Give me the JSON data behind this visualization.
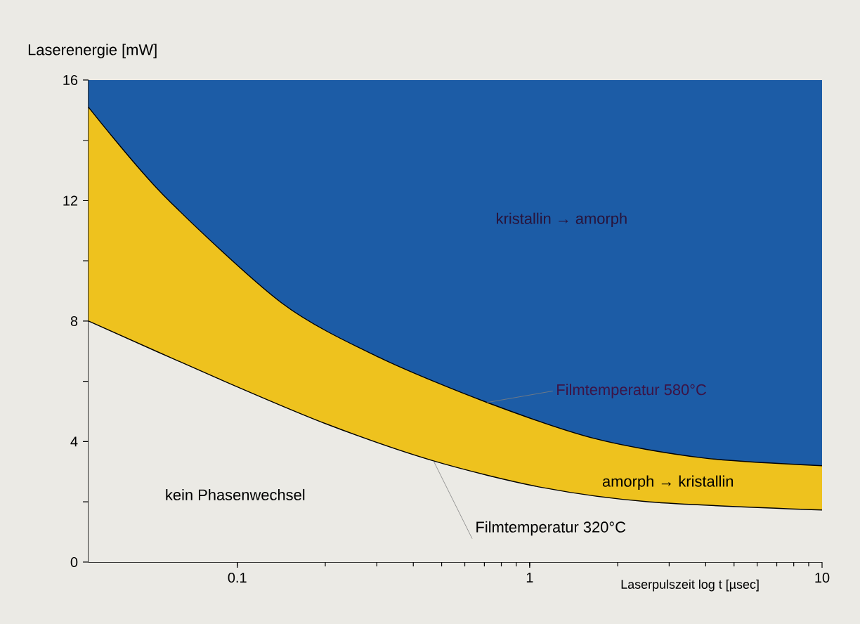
{
  "chart_data": {
    "type": "area",
    "xlabel": "Laserpulszeit log t [µsec]",
    "ylabel": "Laserenergie [mW]",
    "log": "x",
    "xlim": [
      0.031,
      10
    ],
    "xticks": [
      0.1,
      1,
      10
    ],
    "ylim": [
      0,
      16
    ],
    "yticks": [
      0,
      {
        "value": 2,
        "label": null
      },
      4,
      {
        "value": 6,
        "label": null
      },
      8,
      {
        "value": 10,
        "label": null
      },
      12,
      {
        "value": 14,
        "label": null
      },
      16
    ],
    "bands": [
      {
        "axis": "y",
        "from": 0,
        "to": 16,
        "color": "#1c5ca6"
      }
    ],
    "series": [
      {
        "name": "Filmtemperatur 580°C",
        "color": "#eec21e",
        "x": [
          0.031,
          0.0557,
          0.142,
          0.305,
          0.715,
          1.67,
          3.91,
          10
        ],
        "values": [
          15.1,
          12.2,
          8.6,
          6.8,
          5.3,
          4.1,
          3.46,
          3.2
        ]
      },
      {
        "name": "Filmtemperatur 320°C",
        "color": "#ebeae5",
        "x": [
          0.031,
          0.0857,
          0.2,
          0.469,
          1.1,
          2.57,
          10
        ],
        "values": [
          8.0,
          6.1,
          4.6,
          3.36,
          2.48,
          2.0,
          1.73
        ]
      }
    ],
    "annotations": [
      "kristallin → amorph",
      "amorph → kristallin",
      "kein Phasenwechsel"
    ]
  }
}
